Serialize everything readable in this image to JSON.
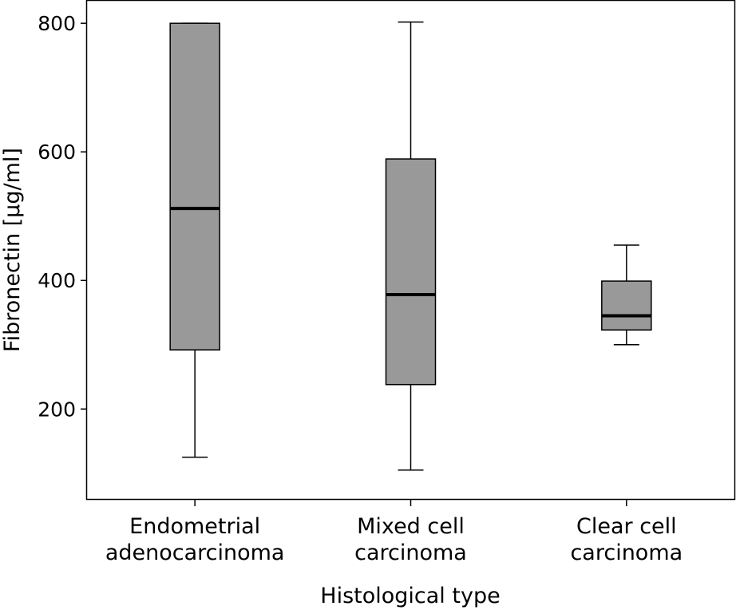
{
  "chart_data": {
    "type": "boxplot",
    "title": "",
    "xlabel": "Histological type",
    "ylabel": "Fibronectin [µg/ml]",
    "ylim": [
      60,
      835
    ],
    "yticks": [
      200,
      400,
      600,
      800
    ],
    "box_color": "#999999",
    "series": [
      {
        "name": "Endometrial adenocarcinoma",
        "label_lines": [
          "Endometrial",
          "adenocarcinoma"
        ],
        "min": 125,
        "q1": 292,
        "median": 512,
        "q3": 800,
        "max": 800
      },
      {
        "name": "Mixed cell carcinoma",
        "label_lines": [
          "Mixed cell",
          "carcinoma"
        ],
        "min": 105,
        "q1": 238,
        "median": 378,
        "q3": 589,
        "max": 802
      },
      {
        "name": "Clear cell carcinoma",
        "label_lines": [
          "Clear cell",
          "carcinoma"
        ],
        "min": 300,
        "q1": 323,
        "median": 345,
        "q3": 399,
        "max": 455
      }
    ]
  }
}
